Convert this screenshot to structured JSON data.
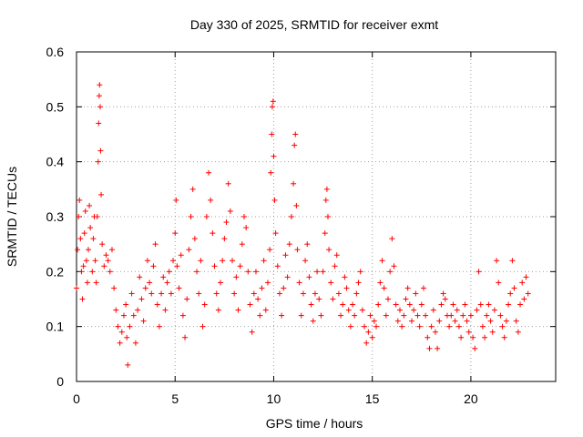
{
  "chart_data": {
    "type": "scatter",
    "title": "Day 330 of 2025, SRMTID for receiver exmt",
    "xlabel": "GPS time / hours",
    "ylabel": "SRMTID / TECUs",
    "xlim": [
      0,
      24.3
    ],
    "ylim": [
      0,
      0.6
    ],
    "xticks": [
      0,
      5,
      10,
      15,
      20
    ],
    "yticks": [
      0,
      0.1,
      0.2,
      0.3,
      0.4,
      0.5,
      0.6
    ],
    "xtick_labels": [
      "0",
      "5",
      "10",
      "15",
      "20"
    ],
    "ytick_labels": [
      "0",
      "0.1",
      "0.2",
      "0.3",
      "0.4",
      "0.5",
      "0.6"
    ],
    "grid": true,
    "marker": "+",
    "color": "#ff0000",
    "x_range_data": [
      0.0,
      22.9
    ],
    "series": [
      {
        "name": "SRMTID",
        "points": [
          [
            0.0,
            0.17
          ],
          [
            0.05,
            0.24
          ],
          [
            0.1,
            0.3
          ],
          [
            0.15,
            0.33
          ],
          [
            0.2,
            0.26
          ],
          [
            0.25,
            0.2
          ],
          [
            0.3,
            0.15
          ],
          [
            0.35,
            0.21
          ],
          [
            0.4,
            0.27
          ],
          [
            0.45,
            0.31
          ],
          [
            0.5,
            0.22
          ],
          [
            0.55,
            0.18
          ],
          [
            0.6,
            0.24
          ],
          [
            0.65,
            0.32
          ],
          [
            0.7,
            0.28
          ],
          [
            0.8,
            0.2
          ],
          [
            0.85,
            0.26
          ],
          [
            0.9,
            0.3
          ],
          [
            0.95,
            0.22
          ],
          [
            1.0,
            0.18
          ],
          [
            1.05,
            0.3
          ],
          [
            1.1,
            0.4
          ],
          [
            1.12,
            0.47
          ],
          [
            1.15,
            0.52
          ],
          [
            1.17,
            0.54
          ],
          [
            1.2,
            0.5
          ],
          [
            1.22,
            0.42
          ],
          [
            1.25,
            0.34
          ],
          [
            1.3,
            0.25
          ],
          [
            1.4,
            0.21
          ],
          [
            1.5,
            0.23
          ],
          [
            1.6,
            0.22
          ],
          [
            1.7,
            0.2
          ],
          [
            1.8,
            0.24
          ],
          [
            1.9,
            0.17
          ],
          [
            2.0,
            0.13
          ],
          [
            2.1,
            0.1
          ],
          [
            2.2,
            0.07
          ],
          [
            2.3,
            0.09
          ],
          [
            2.4,
            0.12
          ],
          [
            2.5,
            0.14
          ],
          [
            2.55,
            0.08
          ],
          [
            2.6,
            0.03
          ],
          [
            2.7,
            0.1
          ],
          [
            2.8,
            0.16
          ],
          [
            2.9,
            0.12
          ],
          [
            3.0,
            0.07
          ],
          [
            3.1,
            0.13
          ],
          [
            3.2,
            0.19
          ],
          [
            3.3,
            0.15
          ],
          [
            3.4,
            0.11
          ],
          [
            3.5,
            0.17
          ],
          [
            3.6,
            0.22
          ],
          [
            3.7,
            0.18
          ],
          [
            3.8,
            0.16
          ],
          [
            3.9,
            0.21
          ],
          [
            4.0,
            0.25
          ],
          [
            4.1,
            0.14
          ],
          [
            4.2,
            0.1
          ],
          [
            4.3,
            0.16
          ],
          [
            4.4,
            0.19
          ],
          [
            4.5,
            0.13
          ],
          [
            4.6,
            0.18
          ],
          [
            4.7,
            0.2
          ],
          [
            4.8,
            0.16
          ],
          [
            4.9,
            0.22
          ],
          [
            5.0,
            0.27
          ],
          [
            5.05,
            0.33
          ],
          [
            5.1,
            0.21
          ],
          [
            5.2,
            0.17
          ],
          [
            5.3,
            0.23
          ],
          [
            5.4,
            0.12
          ],
          [
            5.5,
            0.08
          ],
          [
            5.6,
            0.15
          ],
          [
            5.7,
            0.24
          ],
          [
            5.8,
            0.3
          ],
          [
            5.9,
            0.35
          ],
          [
            6.0,
            0.26
          ],
          [
            6.1,
            0.2
          ],
          [
            6.2,
            0.16
          ],
          [
            6.3,
            0.22
          ],
          [
            6.4,
            0.1
          ],
          [
            6.5,
            0.14
          ],
          [
            6.6,
            0.3
          ],
          [
            6.7,
            0.38
          ],
          [
            6.8,
            0.33
          ],
          [
            6.9,
            0.27
          ],
          [
            7.0,
            0.21
          ],
          [
            7.1,
            0.16
          ],
          [
            7.2,
            0.13
          ],
          [
            7.3,
            0.18
          ],
          [
            7.4,
            0.22
          ],
          [
            7.5,
            0.26
          ],
          [
            7.6,
            0.29
          ],
          [
            7.7,
            0.36
          ],
          [
            7.8,
            0.31
          ],
          [
            7.9,
            0.22
          ],
          [
            8.0,
            0.16
          ],
          [
            8.1,
            0.19
          ],
          [
            8.2,
            0.13
          ],
          [
            8.3,
            0.21
          ],
          [
            8.4,
            0.25
          ],
          [
            8.5,
            0.3
          ],
          [
            8.6,
            0.28
          ],
          [
            8.7,
            0.2
          ],
          [
            8.8,
            0.14
          ],
          [
            8.9,
            0.09
          ],
          [
            9.0,
            0.16
          ],
          [
            9.1,
            0.2
          ],
          [
            9.2,
            0.15
          ],
          [
            9.3,
            0.12
          ],
          [
            9.4,
            0.17
          ],
          [
            9.5,
            0.22
          ],
          [
            9.6,
            0.13
          ],
          [
            9.7,
            0.18
          ],
          [
            9.8,
            0.24
          ],
          [
            9.85,
            0.38
          ],
          [
            9.9,
            0.45
          ],
          [
            9.93,
            0.5
          ],
          [
            9.97,
            0.51
          ],
          [
            10.0,
            0.41
          ],
          [
            10.05,
            0.33
          ],
          [
            10.1,
            0.27
          ],
          [
            10.2,
            0.21
          ],
          [
            10.3,
            0.16
          ],
          [
            10.4,
            0.12
          ],
          [
            10.5,
            0.17
          ],
          [
            10.6,
            0.23
          ],
          [
            10.7,
            0.19
          ],
          [
            10.8,
            0.25
          ],
          [
            10.9,
            0.3
          ],
          [
            11.0,
            0.36
          ],
          [
            11.05,
            0.43
          ],
          [
            11.1,
            0.45
          ],
          [
            11.15,
            0.32
          ],
          [
            11.2,
            0.24
          ],
          [
            11.3,
            0.18
          ],
          [
            11.4,
            0.12
          ],
          [
            11.5,
            0.16
          ],
          [
            11.6,
            0.22
          ],
          [
            11.7,
            0.25
          ],
          [
            11.8,
            0.19
          ],
          [
            11.9,
            0.14
          ],
          [
            12.0,
            0.11
          ],
          [
            12.1,
            0.16
          ],
          [
            12.2,
            0.2
          ],
          [
            12.3,
            0.15
          ],
          [
            12.4,
            0.12
          ],
          [
            12.5,
            0.2
          ],
          [
            12.6,
            0.27
          ],
          [
            12.65,
            0.33
          ],
          [
            12.7,
            0.35
          ],
          [
            12.75,
            0.3
          ],
          [
            12.8,
            0.24
          ],
          [
            12.9,
            0.18
          ],
          [
            13.0,
            0.15
          ],
          [
            13.1,
            0.21
          ],
          [
            13.2,
            0.23
          ],
          [
            13.3,
            0.16
          ],
          [
            13.4,
            0.12
          ],
          [
            13.5,
            0.14
          ],
          [
            13.6,
            0.19
          ],
          [
            13.7,
            0.17
          ],
          [
            13.8,
            0.13
          ],
          [
            13.9,
            0.1
          ],
          [
            14.0,
            0.14
          ],
          [
            14.1,
            0.12
          ],
          [
            14.2,
            0.16
          ],
          [
            14.3,
            0.18
          ],
          [
            14.4,
            0.2
          ],
          [
            14.5,
            0.13
          ],
          [
            14.6,
            0.1
          ],
          [
            14.7,
            0.07
          ],
          [
            14.8,
            0.09
          ],
          [
            14.9,
            0.12
          ],
          [
            15.0,
            0.08
          ],
          [
            15.1,
            0.11
          ],
          [
            15.2,
            0.1
          ],
          [
            15.3,
            0.14
          ],
          [
            15.4,
            0.18
          ],
          [
            15.5,
            0.22
          ],
          [
            15.6,
            0.17
          ],
          [
            15.7,
            0.12
          ],
          [
            15.8,
            0.15
          ],
          [
            15.9,
            0.2
          ],
          [
            16.0,
            0.26
          ],
          [
            16.1,
            0.21
          ],
          [
            16.2,
            0.14
          ],
          [
            16.3,
            0.11
          ],
          [
            16.4,
            0.13
          ],
          [
            16.5,
            0.1
          ],
          [
            16.6,
            0.12
          ],
          [
            16.7,
            0.15
          ],
          [
            16.8,
            0.17
          ],
          [
            16.9,
            0.14
          ],
          [
            17.0,
            0.11
          ],
          [
            17.1,
            0.13
          ],
          [
            17.2,
            0.16
          ],
          [
            17.3,
            0.12
          ],
          [
            17.4,
            0.1
          ],
          [
            17.5,
            0.14
          ],
          [
            17.6,
            0.17
          ],
          [
            17.7,
            0.12
          ],
          [
            17.8,
            0.08
          ],
          [
            17.9,
            0.06
          ],
          [
            18.0,
            0.1
          ],
          [
            18.1,
            0.13
          ],
          [
            18.2,
            0.09
          ],
          [
            18.3,
            0.06
          ],
          [
            18.4,
            0.11
          ],
          [
            18.5,
            0.14
          ],
          [
            18.6,
            0.16
          ],
          [
            18.7,
            0.15
          ],
          [
            18.8,
            0.12
          ],
          [
            18.9,
            0.1
          ],
          [
            19.0,
            0.12
          ],
          [
            19.1,
            0.14
          ],
          [
            19.2,
            0.11
          ],
          [
            19.3,
            0.13
          ],
          [
            19.4,
            0.1
          ],
          [
            19.5,
            0.08
          ],
          [
            19.6,
            0.12
          ],
          [
            19.7,
            0.14
          ],
          [
            19.8,
            0.11
          ],
          [
            19.9,
            0.09
          ],
          [
            20.0,
            0.12
          ],
          [
            20.1,
            0.08
          ],
          [
            20.2,
            0.06
          ],
          [
            20.3,
            0.13
          ],
          [
            20.4,
            0.2
          ],
          [
            20.5,
            0.14
          ],
          [
            20.6,
            0.1
          ],
          [
            20.7,
            0.08
          ],
          [
            20.8,
            0.12
          ],
          [
            20.9,
            0.14
          ],
          [
            21.0,
            0.11
          ],
          [
            21.1,
            0.09
          ],
          [
            21.2,
            0.13
          ],
          [
            21.3,
            0.22
          ],
          [
            21.4,
            0.18
          ],
          [
            21.5,
            0.12
          ],
          [
            21.6,
            0.1
          ],
          [
            21.7,
            0.08
          ],
          [
            21.8,
            0.11
          ],
          [
            21.9,
            0.14
          ],
          [
            22.0,
            0.16
          ],
          [
            22.1,
            0.22
          ],
          [
            22.2,
            0.17
          ],
          [
            22.3,
            0.11
          ],
          [
            22.4,
            0.09
          ],
          [
            22.5,
            0.14
          ],
          [
            22.6,
            0.18
          ],
          [
            22.7,
            0.15
          ],
          [
            22.8,
            0.19
          ],
          [
            22.9,
            0.16
          ]
        ]
      }
    ]
  }
}
